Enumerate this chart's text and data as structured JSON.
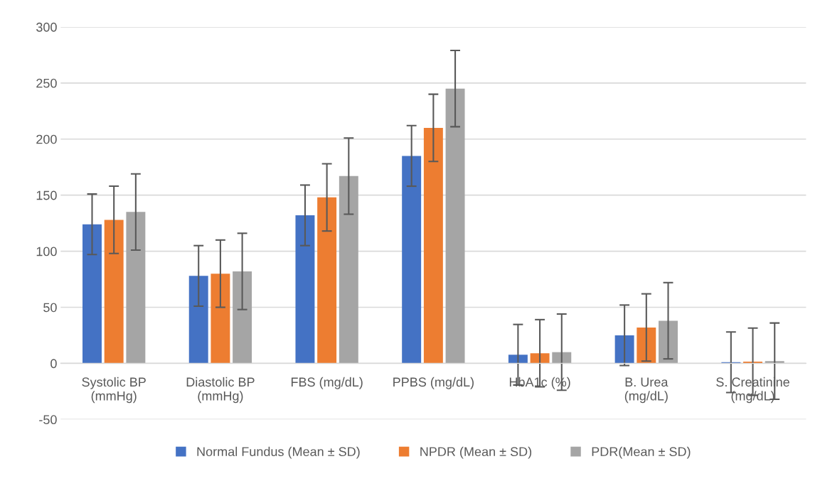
{
  "chart_data": {
    "type": "bar",
    "categories": [
      "Systolic BP\n(mmHg)",
      "Diastolic BP\n(mmHg)",
      "FBS (mg/dL)",
      "PPBS (mg/dL)",
      "HbA1c (%)",
      "B. Urea\n(mg/dL)",
      "S. Creatinine\n(mg/dL)"
    ],
    "series": [
      {
        "name": "Normal Fundus (Mean ± SD)",
        "color": "#4472c4",
        "values": [
          124,
          78,
          132,
          185,
          7.7,
          25,
          1.0
        ],
        "errors": [
          27,
          27,
          27,
          27,
          27,
          27,
          27
        ]
      },
      {
        "name": "NPDR (Mean ± SD)",
        "color": "#ed7d31",
        "values": [
          128,
          80,
          148,
          210,
          9,
          32,
          1.5
        ],
        "errors": [
          30,
          30,
          30,
          30,
          30,
          30,
          30
        ]
      },
      {
        "name": "PDR(Mean ± SD)",
        "color": "#a5a5a5",
        "values": [
          135,
          82,
          167,
          245,
          10,
          38,
          2
        ],
        "errors": [
          34,
          34,
          34,
          34,
          34,
          34,
          34
        ]
      }
    ],
    "ylim": [
      -50,
      300
    ],
    "yticks": [
      -50,
      0,
      50,
      100,
      150,
      200,
      250,
      300
    ],
    "grid": "y",
    "legend": "bottom"
  }
}
